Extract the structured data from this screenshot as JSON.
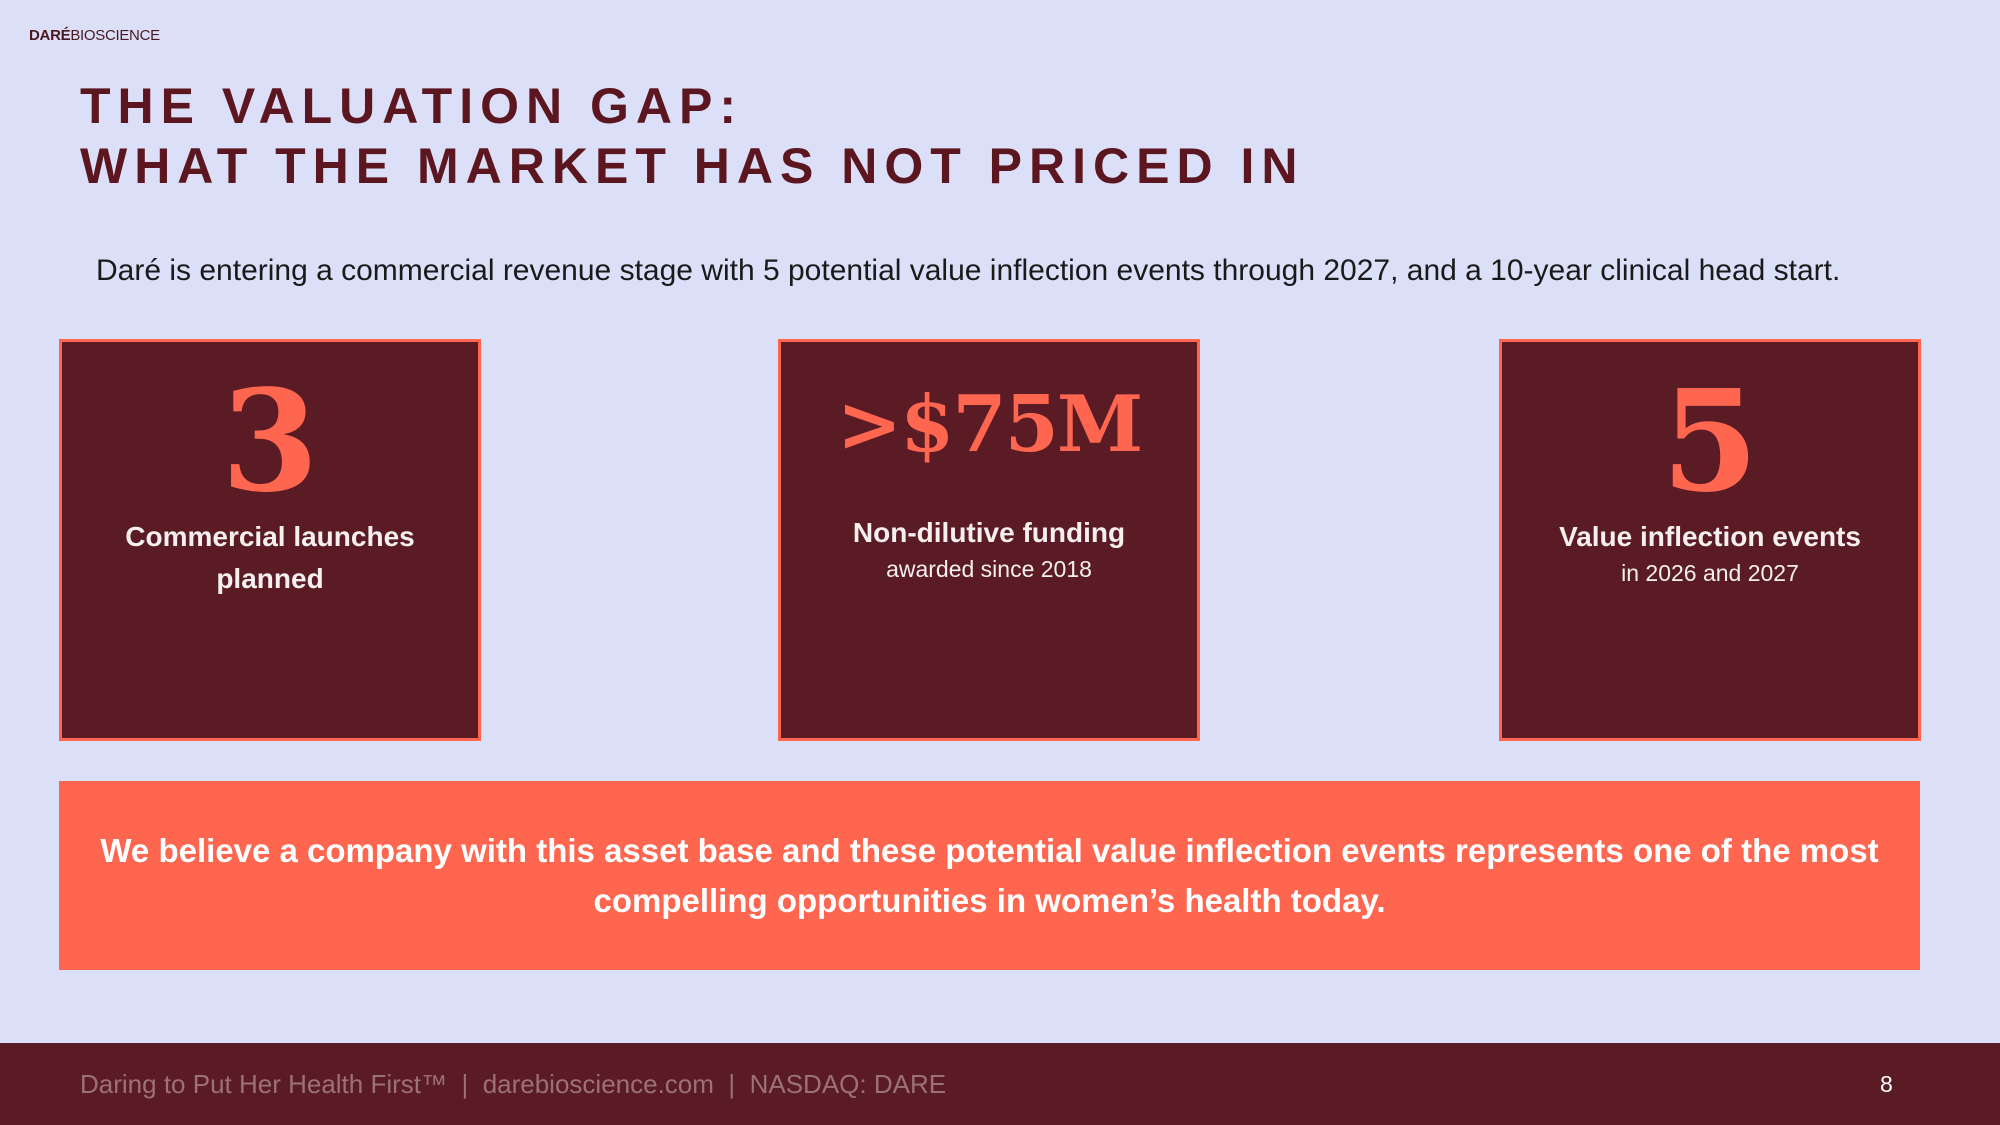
{
  "logo": {
    "bold": "DARÉ",
    "light": "BIOSCIENCE"
  },
  "title": {
    "line1": "THE VALUATION GAP:",
    "line2": "WHAT THE MARKET HAS NOT PRICED IN"
  },
  "subtitle": "Daré is entering a commercial revenue stage with 5 potential value inflection events through 2027, and a 10-year clinical head start.",
  "cards": [
    {
      "value": "3",
      "label_line1": "Commercial launches",
      "label_line2": "planned"
    },
    {
      "value": ">$75M",
      "label": "Non-dilutive funding",
      "sublabel": "awarded since 2018"
    },
    {
      "value": "5",
      "label": "Value inflection events",
      "sublabel": "in 2026 and 2027"
    }
  ],
  "banner": "We believe a company with this asset base and these potential value inflection events represents one of the most compelling opportunities in women’s health today.",
  "footer": {
    "tagline": "Daring to Put Her Health First™",
    "sep": "|",
    "website": "darebioscience.com",
    "ticker": "NASDAQ: DARE",
    "page": "8"
  },
  "colors": {
    "background": "#dbdff8",
    "dark": "#5a1b24",
    "accent": "#ff6650"
  }
}
